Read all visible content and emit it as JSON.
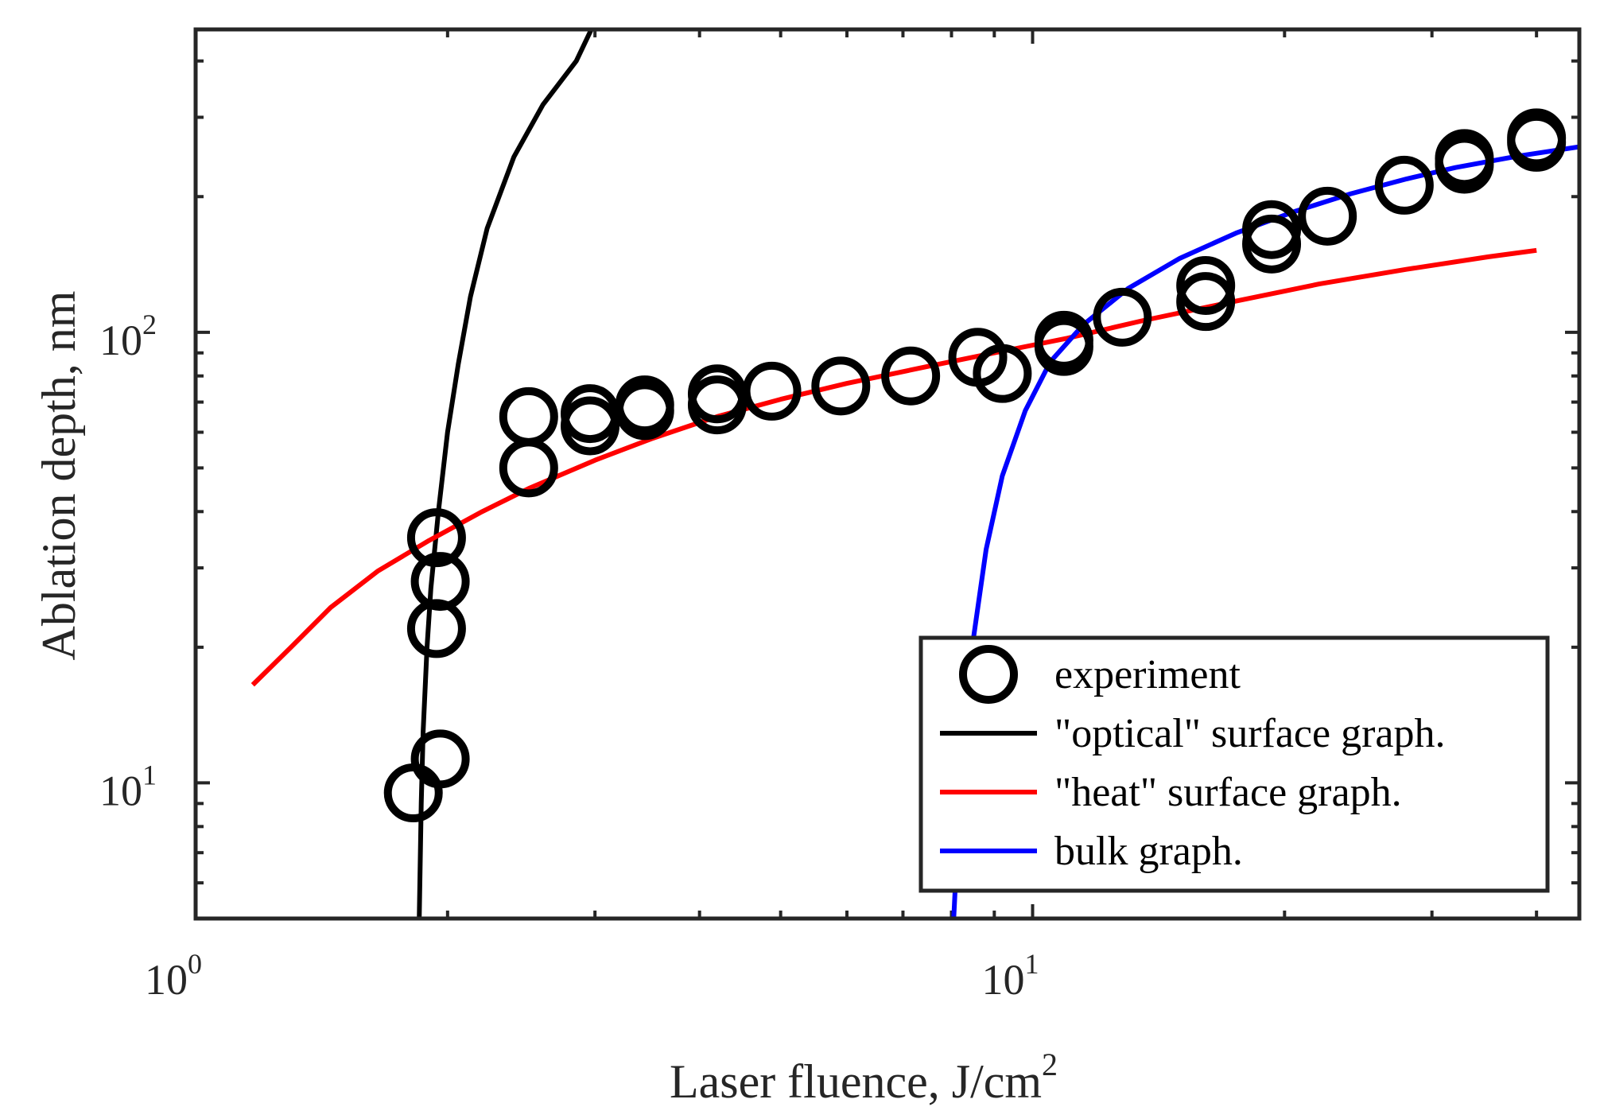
{
  "chart_data": {
    "type": "scatter",
    "xscale": "log",
    "yscale": "log",
    "xlim": [
      1,
      45
    ],
    "ylim": [
      5,
      470
    ],
    "x_ticks": [
      {
        "value": 1,
        "base": "10",
        "exp": "0"
      },
      {
        "value": 10,
        "base": "10",
        "exp": "1"
      }
    ],
    "y_ticks": [
      {
        "value": 10,
        "base": "10",
        "exp": "1"
      },
      {
        "value": 100,
        "base": "10",
        "exp": "2"
      }
    ],
    "xlabel": "Laser fluence, J/cm",
    "xlabel_sup": "2",
    "ylabel": "Ablation depth, nm",
    "grid": false,
    "legend_position": "bottom-right",
    "series": [
      {
        "name": "experiment",
        "kind": "markers",
        "color": "#000000",
        "points": [
          {
            "x": 1.82,
            "y": 9.5
          },
          {
            "x": 1.96,
            "y": 11.3
          },
          {
            "x": 1.94,
            "y": 22
          },
          {
            "x": 1.96,
            "y": 28
          },
          {
            "x": 1.94,
            "y": 35
          },
          {
            "x": 2.5,
            "y": 50
          },
          {
            "x": 2.5,
            "y": 65
          },
          {
            "x": 2.96,
            "y": 62
          },
          {
            "x": 2.96,
            "y": 66
          },
          {
            "x": 3.44,
            "y": 67
          },
          {
            "x": 3.44,
            "y": 69
          },
          {
            "x": 4.2,
            "y": 69
          },
          {
            "x": 4.2,
            "y": 73
          },
          {
            "x": 4.88,
            "y": 74
          },
          {
            "x": 5.9,
            "y": 76
          },
          {
            "x": 7.15,
            "y": 80
          },
          {
            "x": 8.6,
            "y": 88
          },
          {
            "x": 9.2,
            "y": 81
          },
          {
            "x": 10.9,
            "y": 93
          },
          {
            "x": 10.9,
            "y": 96
          },
          {
            "x": 12.8,
            "y": 108
          },
          {
            "x": 16.1,
            "y": 117
          },
          {
            "x": 16.1,
            "y": 127
          },
          {
            "x": 19.3,
            "y": 157
          },
          {
            "x": 19.3,
            "y": 169
          },
          {
            "x": 22.5,
            "y": 181
          },
          {
            "x": 27.8,
            "y": 212
          },
          {
            "x": 32.8,
            "y": 236
          },
          {
            "x": 32.8,
            "y": 243
          },
          {
            "x": 40,
            "y": 264
          },
          {
            "x": 40,
            "y": 270
          }
        ]
      },
      {
        "name": "\"optical\" surface graph.",
        "kind": "line",
        "color": "#000000",
        "points": [
          {
            "x": 1.85,
            "y": 5
          },
          {
            "x": 1.86,
            "y": 9
          },
          {
            "x": 1.87,
            "y": 13
          },
          {
            "x": 1.89,
            "y": 20
          },
          {
            "x": 1.91,
            "y": 27
          },
          {
            "x": 1.95,
            "y": 40
          },
          {
            "x": 2.0,
            "y": 60
          },
          {
            "x": 2.06,
            "y": 85
          },
          {
            "x": 2.13,
            "y": 120
          },
          {
            "x": 2.23,
            "y": 170
          },
          {
            "x": 2.4,
            "y": 245
          },
          {
            "x": 2.6,
            "y": 320
          },
          {
            "x": 2.85,
            "y": 400
          },
          {
            "x": 2.97,
            "y": 470
          }
        ]
      },
      {
        "name": "\"heat\" surface graph.",
        "kind": "line",
        "color": "#ff0000",
        "points": [
          {
            "x": 1.17,
            "y": 16.5
          },
          {
            "x": 1.3,
            "y": 20
          },
          {
            "x": 1.45,
            "y": 24.5
          },
          {
            "x": 1.65,
            "y": 29.5
          },
          {
            "x": 1.9,
            "y": 34.5
          },
          {
            "x": 2.2,
            "y": 40
          },
          {
            "x": 2.5,
            "y": 45
          },
          {
            "x": 3.0,
            "y": 52
          },
          {
            "x": 3.5,
            "y": 58
          },
          {
            "x": 4.2,
            "y": 65
          },
          {
            "x": 5.0,
            "y": 71
          },
          {
            "x": 6.0,
            "y": 77
          },
          {
            "x": 7.5,
            "y": 84
          },
          {
            "x": 9.0,
            "y": 90
          },
          {
            "x": 11.0,
            "y": 97
          },
          {
            "x": 13.5,
            "y": 106
          },
          {
            "x": 17.0,
            "y": 116
          },
          {
            "x": 22.0,
            "y": 128
          },
          {
            "x": 28.0,
            "y": 138
          },
          {
            "x": 35.0,
            "y": 147
          },
          {
            "x": 40.0,
            "y": 152
          }
        ]
      },
      {
        "name": "bulk graph.",
        "kind": "line",
        "color": "#0000ff",
        "points": [
          {
            "x": 8.05,
            "y": 5
          },
          {
            "x": 8.15,
            "y": 8
          },
          {
            "x": 8.3,
            "y": 13
          },
          {
            "x": 8.5,
            "y": 21
          },
          {
            "x": 8.8,
            "y": 33
          },
          {
            "x": 9.2,
            "y": 48
          },
          {
            "x": 9.8,
            "y": 67
          },
          {
            "x": 10.5,
            "y": 86
          },
          {
            "x": 11.5,
            "y": 104
          },
          {
            "x": 13.0,
            "y": 125
          },
          {
            "x": 15.0,
            "y": 146
          },
          {
            "x": 17.5,
            "y": 166
          },
          {
            "x": 20.5,
            "y": 185
          },
          {
            "x": 24.0,
            "y": 203
          },
          {
            "x": 28.0,
            "y": 219
          },
          {
            "x": 32.0,
            "y": 232
          },
          {
            "x": 38.0,
            "y": 246
          },
          {
            "x": 45.0,
            "y": 258
          }
        ]
      }
    ]
  }
}
